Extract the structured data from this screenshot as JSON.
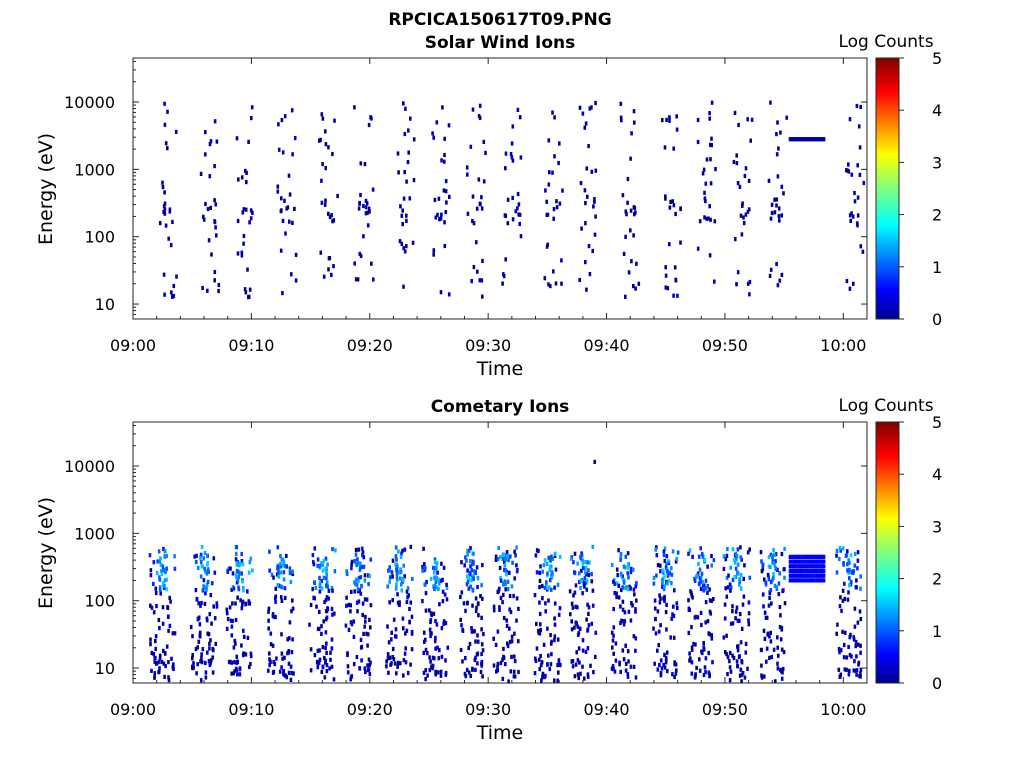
{
  "figure": {
    "title": "RPCICA150617T09.PNG"
  },
  "colorbar": {
    "label": "Log Counts",
    "ticks": [
      "0",
      "1",
      "2",
      "3",
      "4",
      "5"
    ],
    "range": [
      0,
      5
    ],
    "colormap": "jet"
  },
  "chart_data": [
    {
      "type": "heatmap",
      "title": "Solar Wind Ions",
      "xlabel": "Time",
      "ylabel": "Energy (eV)",
      "x_ticks": [
        "09:00",
        "09:10",
        "09:20",
        "09:30",
        "09:40",
        "09:50",
        "10:00"
      ],
      "y_ticks": [
        "10",
        "100",
        "1000",
        "10000"
      ],
      "xlim": [
        "09:00",
        "10:02"
      ],
      "ylim": [
        6,
        45000
      ],
      "yscale": "log",
      "colorbar_label": "Log Counts",
      "clim": [
        0,
        5
      ],
      "scan_times": [
        "09:03",
        "09:06:30",
        "09:09:30",
        "09:13",
        "09:16:30",
        "09:19:30",
        "09:23",
        "09:26",
        "09:29",
        "09:32",
        "09:35:30",
        "09:38:30",
        "09:42",
        "09:45:30",
        "09:48:30",
        "09:51:30",
        "09:54:30",
        "10:01"
      ],
      "sustained_band": {
        "start": "09:55:30",
        "end": "09:58:30",
        "energy": 2800,
        "log_counts": 0.2
      },
      "max_log_counts": 0.3
    },
    {
      "type": "heatmap",
      "title": "Cometary Ions",
      "xlabel": "Time",
      "ylabel": "Energy (eV)",
      "x_ticks": [
        "09:00",
        "09:10",
        "09:20",
        "09:30",
        "09:40",
        "09:50",
        "10:00"
      ],
      "y_ticks": [
        "10",
        "100",
        "1000",
        "10000"
      ],
      "xlim": [
        "09:00",
        "10:02"
      ],
      "ylim": [
        6,
        45000
      ],
      "yscale": "log",
      "colorbar_label": "Log Counts",
      "clim": [
        0,
        5
      ],
      "scan_times": [
        "09:03",
        "09:06:30",
        "09:09:30",
        "09:13",
        "09:16:30",
        "09:19:30",
        "09:23",
        "09:26",
        "09:29",
        "09:32",
        "09:35:30",
        "09:38:30",
        "09:42",
        "09:45:30",
        "09:48:30",
        "09:51:30",
        "09:54:30",
        "10:01"
      ],
      "typical_energy_range_eV": [
        8,
        700
      ],
      "peak_log_counts": 1.6,
      "sustained_band": {
        "start": "09:55:30",
        "end": "09:58:30",
        "energy_range": [
          200,
          450
        ],
        "log_counts": 0.6
      }
    }
  ]
}
